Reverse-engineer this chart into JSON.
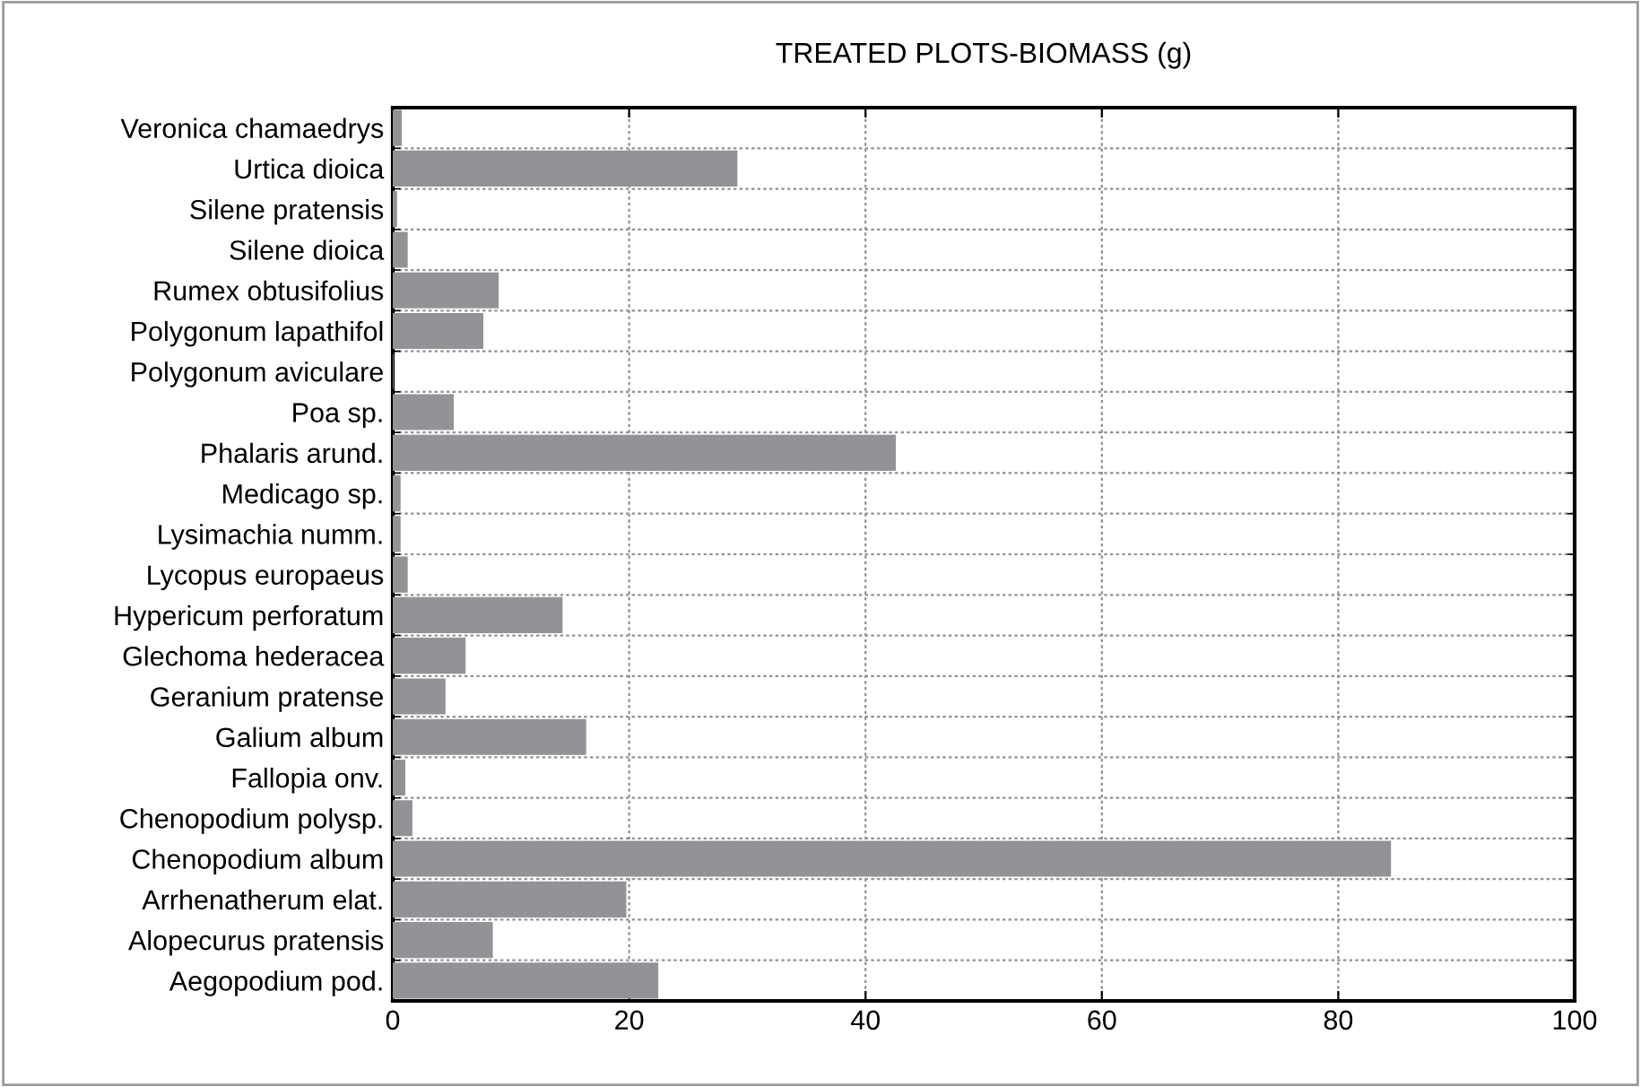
{
  "chart_data": {
    "type": "bar",
    "orientation": "horizontal",
    "title": "TREATED PLOTS-BIOMASS (g)",
    "categories": [
      "Veronica chamaedrys",
      "Urtica dioica",
      "Silene pratensis",
      "Silene dioica",
      "Rumex obtusifolius",
      "Polygonum lapathifol",
      "Polygonum aviculare",
      "Poa sp.",
      "Phalaris arund.",
      "Medicago sp.",
      "Lysimachia numm.",
      "Lycopus europaeus",
      "Hypericum perforatum",
      "Glechoma hederacea",
      "Geranium pratense",
      "Galium album",
      "Fallopia onv.",
      "Chenopodium polysp.",
      "Chenopodium album",
      "Arrhenatherum elat.",
      "Alopecurus pratensis",
      "Aegopodium pod."
    ],
    "values": [
      0.7,
      29.1,
      0.3,
      1.2,
      8.9,
      7.6,
      0,
      5.1,
      42.5,
      0.6,
      0.6,
      1.2,
      14.3,
      6.1,
      4.4,
      16.3,
      1.0,
      1.6,
      84.4,
      19.7,
      8.4,
      22.4
    ],
    "color": "#929396",
    "xlim": [
      0,
      100
    ],
    "xticks": [
      0,
      20,
      40,
      60,
      80,
      100
    ],
    "grid": true
  }
}
